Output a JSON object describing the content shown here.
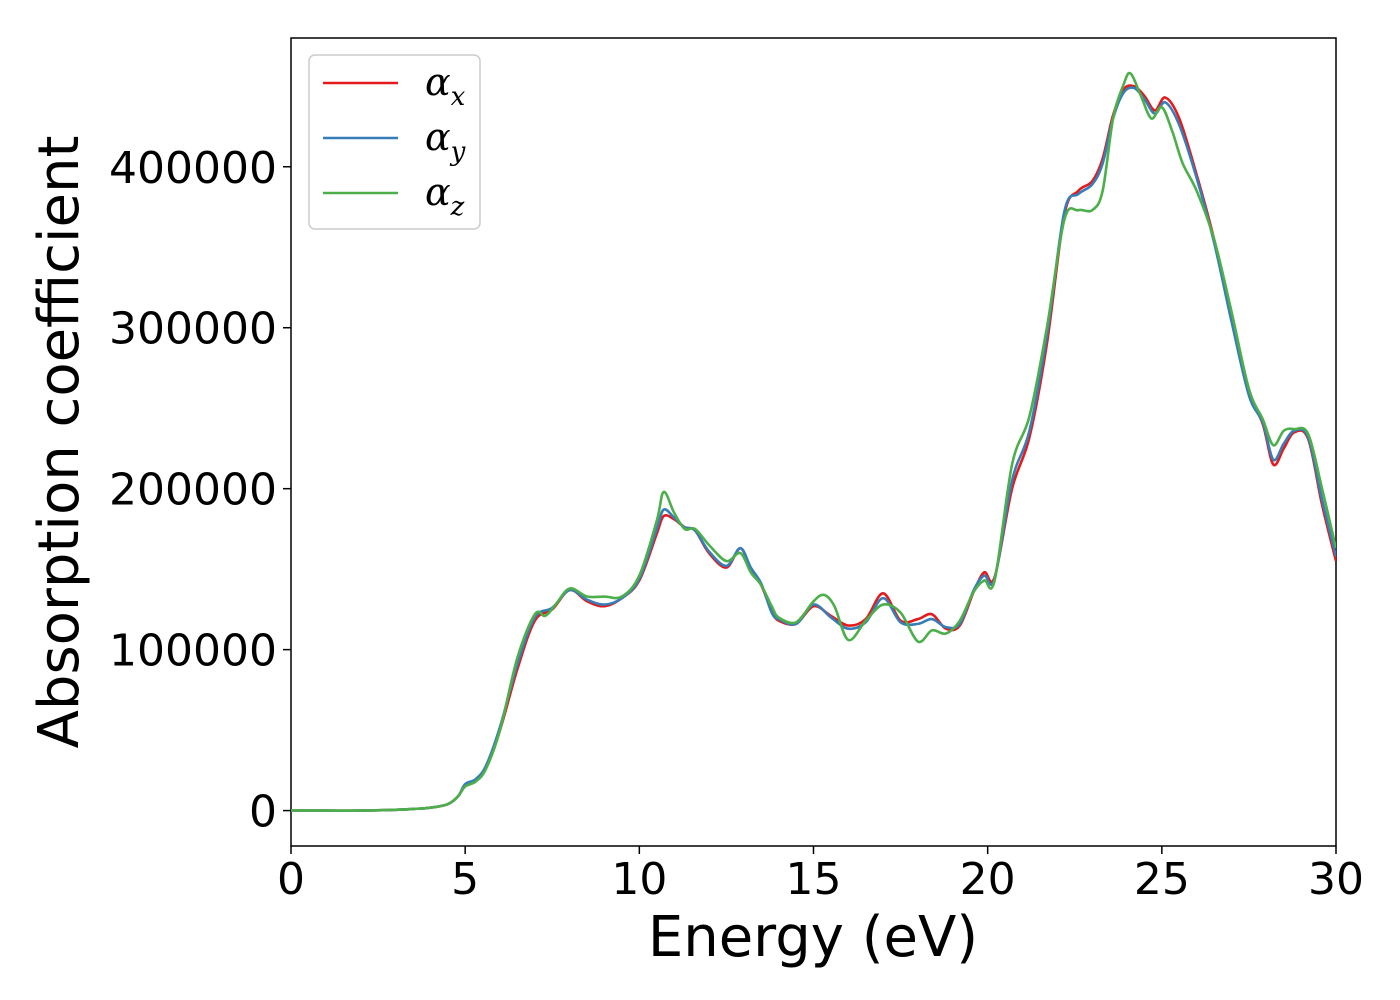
{
  "chart_data": {
    "type": "line",
    "xlabel": "Energy (eV)",
    "ylabel": "Absorption coefficient",
    "xlim": [
      0,
      30
    ],
    "ylim": [
      -22000,
      480000
    ],
    "xticks": [
      0,
      5,
      10,
      15,
      20,
      25,
      30
    ],
    "yticks": [
      0,
      100000,
      200000,
      300000,
      400000
    ],
    "grid": false,
    "legend_position": "top-left",
    "series": [
      {
        "name": "α_x",
        "symbol": "α",
        "subscript": "x",
        "color": "#e41a1c",
        "x": [
          0,
          1,
          2,
          3,
          3.5,
          4,
          4.5,
          4.8,
          5,
          5.3,
          5.6,
          6,
          6.5,
          7,
          7.5,
          8,
          8.5,
          9,
          9.5,
          10,
          10.5,
          10.7,
          11,
          11.3,
          11.6,
          12,
          12.5,
          12.9,
          13.2,
          13.5,
          13.8,
          14,
          14.5,
          15,
          15.5,
          16,
          16.5,
          17,
          17.5,
          18,
          18.4,
          18.8,
          19.2,
          19.6,
          19.9,
          20.2,
          20.7,
          21.2,
          21.7,
          22.2,
          22.6,
          23,
          23.3,
          23.6,
          23.9,
          24.2,
          24.5,
          24.8,
          25.1,
          25.5,
          26,
          26.5,
          27,
          27.5,
          27.9,
          28.2,
          28.5,
          28.8,
          29.2,
          29.6,
          30
        ],
        "y": [
          0,
          0,
          0,
          500,
          1000,
          1800,
          4000,
          9000,
          16000,
          19000,
          27000,
          50000,
          88000,
          118000,
          125000,
          137000,
          130000,
          127000,
          132000,
          143000,
          172000,
          183000,
          181000,
          176000,
          174000,
          160000,
          151000,
          163000,
          150000,
          140000,
          124000,
          118000,
          116000,
          127000,
          121000,
          115000,
          119000,
          135000,
          118000,
          119000,
          122000,
          113000,
          115000,
          136000,
          148000,
          145000,
          200000,
          232000,
          290000,
          370000,
          385000,
          391000,
          405000,
          432000,
          448000,
          450000,
          444000,
          435000,
          443000,
          430000,
          395000,
          355000,
          305000,
          260000,
          240000,
          215000,
          225000,
          235000,
          231000,
          190000,
          155000
        ]
      },
      {
        "name": "α_y",
        "symbol": "α",
        "subscript": "y",
        "color": "#377eb8",
        "x": [
          0,
          1,
          2,
          3,
          3.5,
          4,
          4.5,
          4.8,
          5,
          5.3,
          5.6,
          6,
          6.5,
          7,
          7.5,
          8,
          8.5,
          9,
          9.5,
          10,
          10.5,
          10.7,
          11,
          11.3,
          11.6,
          12,
          12.5,
          12.9,
          13.2,
          13.5,
          13.8,
          14,
          14.5,
          15,
          15.5,
          16,
          16.5,
          17,
          17.5,
          18,
          18.4,
          18.8,
          19.2,
          19.6,
          19.9,
          20.2,
          20.7,
          21.2,
          21.7,
          22.2,
          22.6,
          23,
          23.3,
          23.6,
          23.9,
          24.2,
          24.5,
          24.8,
          25.1,
          25.5,
          26,
          26.5,
          27,
          27.5,
          27.9,
          28.2,
          28.5,
          28.8,
          29.2,
          29.6,
          30
        ],
        "y": [
          0,
          0,
          0,
          500,
          1000,
          1800,
          4000,
          9000,
          16500,
          19500,
          28000,
          52000,
          91000,
          120000,
          126000,
          137000,
          131000,
          128000,
          132000,
          144000,
          175000,
          187000,
          182000,
          176000,
          174000,
          161000,
          152000,
          163000,
          151000,
          141000,
          123000,
          119000,
          116000,
          128000,
          120000,
          113000,
          117000,
          132000,
          117000,
          116000,
          119000,
          114000,
          116000,
          137000,
          146000,
          144000,
          205000,
          236000,
          295000,
          372000,
          383000,
          389000,
          402000,
          430000,
          446000,
          449000,
          442000,
          433000,
          440000,
          426000,
          393000,
          353000,
          304000,
          258000,
          241000,
          218000,
          228000,
          236000,
          232000,
          193000,
          158000
        ]
      },
      {
        "name": "α_z",
        "symbol": "α",
        "subscript": "z",
        "color": "#4daf4a",
        "x": [
          0,
          1,
          2,
          3,
          3.5,
          4,
          4.5,
          4.8,
          5,
          5.3,
          5.6,
          6,
          6.5,
          7,
          7.3,
          7.6,
          8,
          8.5,
          9,
          9.5,
          10,
          10.5,
          10.7,
          11,
          11.3,
          11.6,
          12,
          12.5,
          12.9,
          13.2,
          13.5,
          13.8,
          14,
          14.5,
          15,
          15.3,
          15.6,
          16,
          16.5,
          17,
          17.5,
          18,
          18.4,
          18.8,
          19.2,
          19.6,
          19.9,
          20.2,
          20.7,
          21.2,
          21.7,
          22.2,
          22.6,
          23,
          23.3,
          23.6,
          23.9,
          24.1,
          24.4,
          24.7,
          25,
          25.3,
          25.6,
          26,
          26.5,
          27,
          27.5,
          27.9,
          28.2,
          28.5,
          28.8,
          29.2,
          29.6,
          30
        ],
        "y": [
          0,
          0,
          0,
          500,
          1000,
          1800,
          4000,
          9000,
          15000,
          18000,
          26000,
          50000,
          95000,
          122000,
          121000,
          128000,
          138000,
          133000,
          133000,
          133000,
          146000,
          180000,
          198000,
          185000,
          175000,
          175000,
          165000,
          155000,
          160000,
          148000,
          140000,
          127000,
          120000,
          117000,
          130000,
          134000,
          127000,
          106000,
          118000,
          128000,
          123000,
          105000,
          112000,
          110000,
          118000,
          136000,
          143000,
          143000,
          215000,
          245000,
          300000,
          367000,
          373000,
          373000,
          385000,
          430000,
          451000,
          458000,
          444000,
          430000,
          437000,
          422000,
          402000,
          385000,
          355000,
          310000,
          262000,
          243000,
          227000,
          236000,
          237000,
          234000,
          200000,
          163000
        ]
      }
    ]
  }
}
